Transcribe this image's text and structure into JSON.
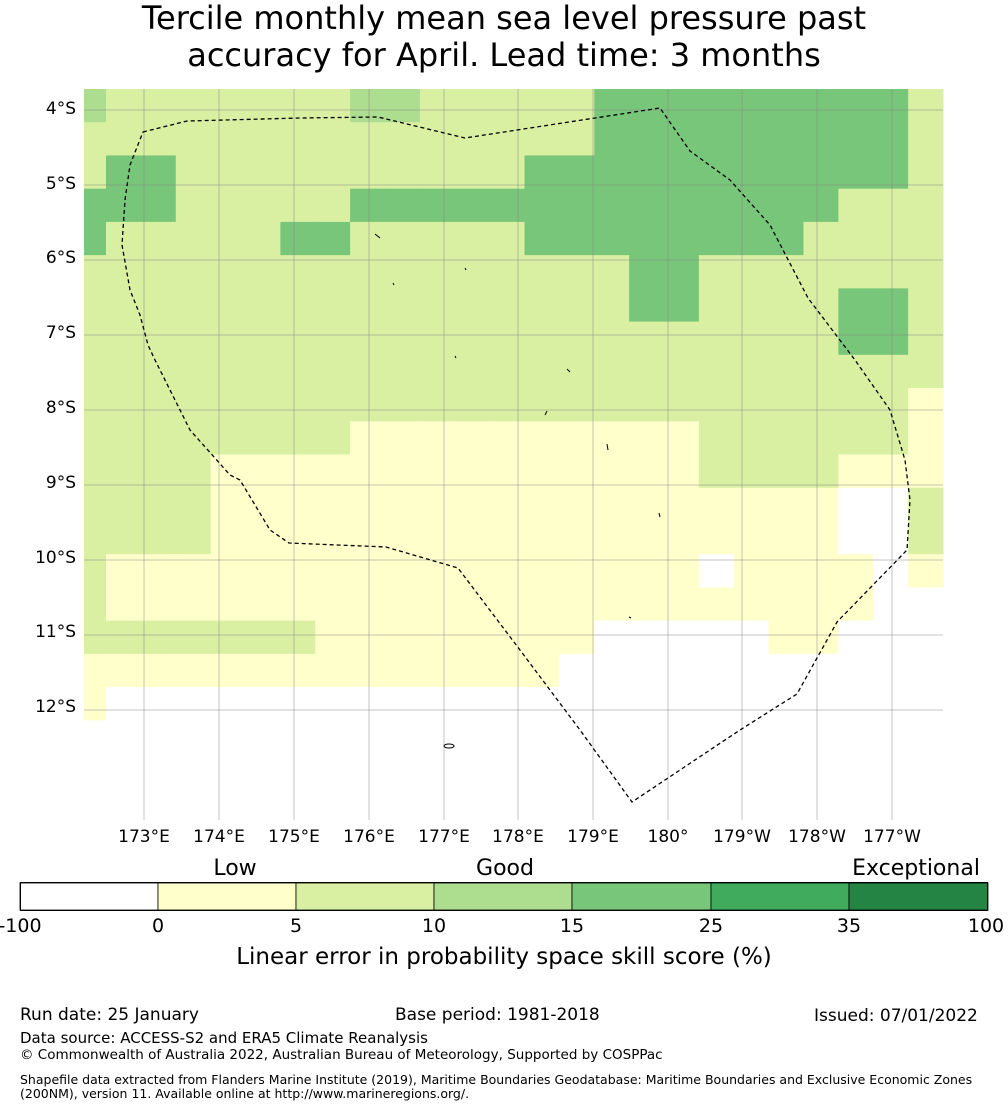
{
  "title": {
    "line1": "Tercile monthly mean sea level pressure past",
    "line2": "accuracy for April. Lead time: 3 months"
  },
  "map": {
    "lat_labels": [
      "4°S",
      "5°S",
      "6°S",
      "7°S",
      "8°S",
      "9°S",
      "10°S",
      "11°S",
      "12°S"
    ],
    "lon_labels": [
      "173°E",
      "174°E",
      "175°E",
      "176°E",
      "177°E",
      "178°E",
      "179°E",
      "180°",
      "179°W",
      "178°W",
      "177°W"
    ],
    "grid": [
      "3222222233222224444444442",
      "2222222222222224444444442",
      "2442222222222444444444442",
      "4442222244444444444444222",
      "4222224422222444444442222",
      "2222222222222222442222222",
      "2222222222222222442222442",
      "2222222222222222222222442",
      "2222222222222222222222222",
      "2222222222222222222222221",
      "2222222211111111112222221",
      "2222111111111111112222111",
      "2222111111111111111111002",
      "2222111111111111111111002",
      "2111111111111111110111101",
      "2111111111111111111111100",
      "2222222111111110000011000",
      "1111111111111100000000000",
      "1000000000000000000000000",
      "0000000000000000000000000",
      "0000000000000000000000000",
      "0000000000000000000000000"
    ]
  },
  "colorbar": {
    "categories": [
      "Low",
      "Good",
      "Exceptional"
    ],
    "ticks": [
      "-100",
      "0",
      "5",
      "10",
      "15",
      "25",
      "35",
      "100"
    ],
    "colors": [
      "#ffffff",
      "#ffffcc",
      "#d9f0a3",
      "#addd8e",
      "#78c679",
      "#41ab5d",
      "#238443"
    ],
    "label": "Linear error in probability space skill score (%)"
  },
  "footer": {
    "run_date": "Run date: 25 January",
    "base_period": "Base period: 1981-2018",
    "issued": "Issued: 07/01/2022",
    "data_source": "Data source: ACCESS-S2 and ERA5 Climate Reanalysis",
    "copyright": "© Commonwealth of Australia 2022, Australian Bureau of Meteorology, Supported by COSPPac",
    "shapefile": "Shapefile data extracted from Flanders Marine Institute (2019), Maritime Boundaries Geodatabase: Maritime Boundaries and Exclusive Economic Zones (200NM), version 11. Available online at http://www.marineregions.org/."
  }
}
